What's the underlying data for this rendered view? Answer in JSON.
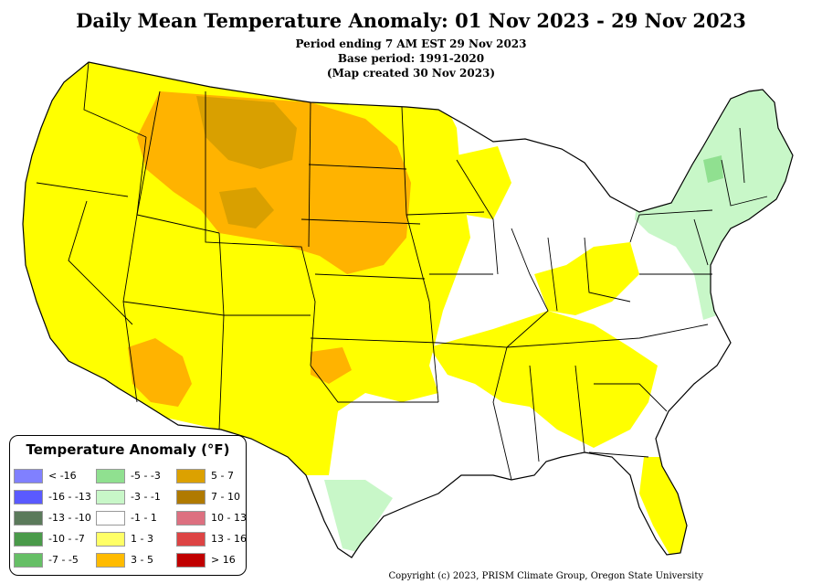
{
  "header": {
    "title": "Daily Mean Temperature Anomaly: 01 Nov 2023 - 29 Nov 2023",
    "period": "Period ending 7 AM EST 29 Nov 2023",
    "base": "Base period: 1991-2020",
    "created": "(Map created 30 Nov 2023)"
  },
  "legend": {
    "title": "Temperature Anomaly (°F)",
    "items": [
      {
        "label": "< -16",
        "color": "#8080ff"
      },
      {
        "label": "-16 - -13",
        "color": "#5a5aff"
      },
      {
        "label": "-13 - -10",
        "color": "#5b7a5b"
      },
      {
        "label": "-10 - -7",
        "color": "#4a9a4a"
      },
      {
        "label": "-7 - -5",
        "color": "#66bf66"
      },
      {
        "label": "-5 - -3",
        "color": "#90e090"
      },
      {
        "label": "-3 - -1",
        "color": "#c8f7c8"
      },
      {
        "label": "-1 - 1",
        "color": "#ffffff"
      },
      {
        "label": "1 - 3",
        "color": "#ffff66"
      },
      {
        "label": "3 - 5",
        "color": "#ffbb00"
      },
      {
        "label": "5 - 7",
        "color": "#dca100"
      },
      {
        "label": "7 - 10",
        "color": "#b07a00"
      },
      {
        "label": "10 - 13",
        "color": "#dd7080"
      },
      {
        "label": "13 - 16",
        "color": "#dd4444"
      },
      {
        "label": "> 16",
        "color": "#c00000"
      }
    ]
  },
  "footer": {
    "copyright": "Copyright (c) 2023, PRISM Climate Group, Oregon State University"
  }
}
